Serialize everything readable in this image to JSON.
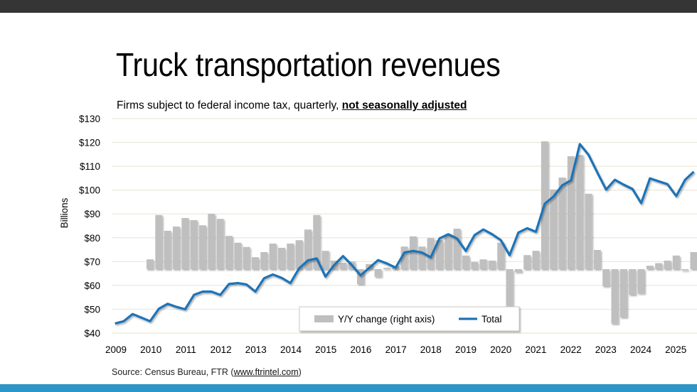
{
  "slide": {
    "title": "Truck transportation revenues",
    "subtitle_prefix": "Firms subject to federal income tax, quarterly, ",
    "subtitle_emphasis": "not seasonally adjusted",
    "source_prefix": "Source: Census Bureau, FTR (",
    "source_link": "www.ftrintel.com",
    "source_suffix": ")"
  },
  "colors": {
    "top_bar": "#353535",
    "bottom_bar": "#2e95c8",
    "line": "#1a73b8",
    "bars": "#bfbfbf",
    "grid": "#ece9dc"
  },
  "chart_data": {
    "type": "bar+line",
    "title": "",
    "ylabel": "Billions",
    "ylim": [
      40,
      130
    ],
    "y_ticks": [
      "$40",
      "$50",
      "$60",
      "$70",
      "$80",
      "$90",
      "$100",
      "$110",
      "$120",
      "$130"
    ],
    "y_tick_values": [
      40,
      50,
      60,
      70,
      80,
      90,
      100,
      110,
      120,
      130
    ],
    "x_ticks": [
      "2009",
      "2010",
      "2011",
      "2012",
      "2013",
      "2014",
      "2015",
      "2016",
      "2017",
      "2018",
      "2019",
      "2020",
      "2021",
      "2022",
      "2023",
      "2024",
      "2025"
    ],
    "grid": true,
    "legend_position": "bottom-right",
    "frequency": "quarterly",
    "x_start": "2009-Q1",
    "series": [
      {
        "name": "Total",
        "type": "line",
        "axis": "left",
        "values": [
          44,
          45,
          48,
          46.5,
          45,
          50.2,
          52.3,
          51,
          50,
          56,
          57.4,
          57.4,
          56,
          60.6,
          61,
          60.4,
          57.4,
          63,
          64.6,
          63.2,
          61,
          67.2,
          70.5,
          71.3,
          63.7,
          68.6,
          72.3,
          68.6,
          64.2,
          67.4,
          70.6,
          69.2,
          67.5,
          73.8,
          74.5,
          73.8,
          71.8,
          79.7,
          81.5,
          79.7,
          74.5,
          81.1,
          83.5,
          81.5,
          79,
          72.7,
          82.2,
          84,
          82.5,
          94.3,
          97.3,
          102,
          104.1,
          119.3,
          114.8,
          107.4,
          100.2,
          104.3,
          102.3,
          100.5,
          94.5,
          104.9,
          103.7,
          102.5,
          97.5,
          104.3,
          107.7
        ]
      },
      {
        "name": "Y/Y change (right axis)",
        "type": "bar",
        "axis": "right",
        "unit": "%",
        "values": [
          null,
          null,
          null,
          null,
          2.3,
          12.7,
          9,
          10,
          12,
          11.5,
          10.3,
          13,
          11.8,
          7.8,
          6.2,
          5.2,
          2.8,
          4,
          6,
          5,
          6,
          6.8,
          9.3,
          12.7,
          4.3,
          2,
          1.5,
          1.8,
          -3.5,
          1.2,
          -1.8,
          0.3,
          0.7,
          5.3,
          7.7,
          5.3,
          7.3,
          6.8,
          8.2,
          9.5,
          3.2,
          1.7,
          2.3,
          2,
          6.2,
          -10.4,
          -0.7,
          3.3,
          4.3,
          30,
          18.7,
          21.5,
          26.5,
          26.8,
          17.7,
          4.5,
          -4,
          -12.8,
          -11.3,
          -6,
          -5.7,
          0.8,
          1.4,
          2,
          3.2,
          -0.3,
          4
        ]
      }
    ]
  }
}
